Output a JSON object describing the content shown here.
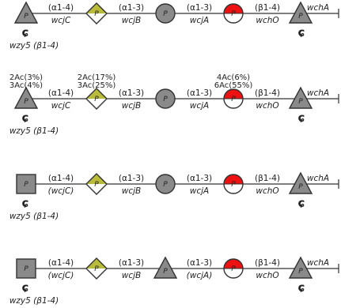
{
  "colors": {
    "gray": "#8a8a8a",
    "yellow": "#b9bb3a",
    "red": "#ee1111",
    "white": "#ffffff",
    "stroke": "#333333"
  },
  "symbol_letter": "P",
  "hook_glyph": "ɕ",
  "rows": [
    {
      "shapes": [
        "triangle",
        "diamond",
        "circle",
        "half-circle",
        "triangle"
      ],
      "links": [
        "(α1-4)",
        "(α1-3)",
        "(α1-3)",
        "(β1-4)"
      ],
      "genes": [
        "wcjC",
        "wcjB",
        "wcjA",
        "wchO",
        "wchA"
      ],
      "bottom_label": "wzy5 (β1-4)",
      "acetyl": []
    },
    {
      "shapes": [
        "triangle",
        "diamond",
        "circle",
        "half-circle",
        "triangle"
      ],
      "links": [
        "(α1-4)",
        "(α1-3)",
        "(α1-3)",
        "(β1-4)"
      ],
      "genes": [
        "wcjC",
        "wcjB",
        "wcjA",
        "wchO",
        "wchA"
      ],
      "bottom_label": "wzy5 (β1-4)",
      "acetyl": [
        {
          "shape": 0,
          "lines": [
            "2Ac(3%)",
            "3Ac(4%)"
          ]
        },
        {
          "shape": 1,
          "lines": [
            "2Ac(17%)",
            "3Ac(25%)"
          ]
        },
        {
          "shape": 3,
          "lines": [
            "4Ac(6%)",
            "6Ac(55%)"
          ]
        }
      ]
    },
    {
      "shapes": [
        "square",
        "diamond",
        "circle",
        "half-circle",
        "triangle"
      ],
      "links": [
        "(α1-4)",
        "(α1-3)",
        "(α1-3)",
        "(β1-4)"
      ],
      "genes": [
        "(wcjC)",
        "wcjB",
        "wcjA",
        "wchO",
        "wchA"
      ],
      "bottom_label": "wzy5 (β1-4)",
      "acetyl": []
    },
    {
      "shapes": [
        "square",
        "diamond",
        "triangle",
        "half-circle",
        "triangle"
      ],
      "links": [
        "(α1-4)",
        "(α1-3)",
        "(α1-3)",
        "(β1-4)"
      ],
      "genes": [
        "(wcjC)",
        "wcjB",
        "(wcjA)",
        "wchO",
        "wchA"
      ],
      "bottom_label": "wzy5 (β1-4)",
      "acetyl": []
    }
  ]
}
